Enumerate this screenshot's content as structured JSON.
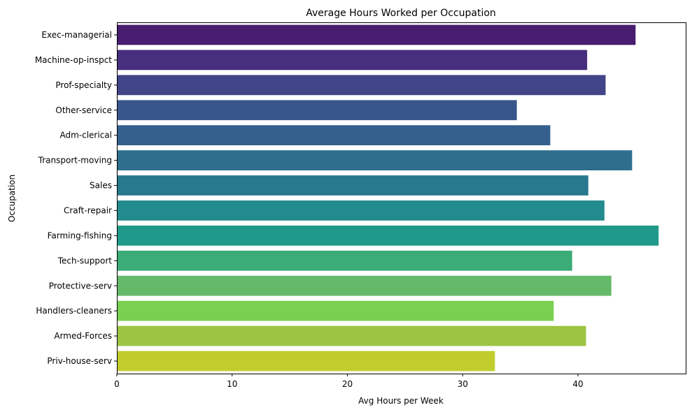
{
  "chart_data": {
    "type": "bar",
    "orientation": "horizontal",
    "title": "Average Hours Worked per Occupation",
    "xlabel": "Avg Hours per Week",
    "ylabel": "Occupation",
    "categories": [
      "Exec-managerial",
      "Machine-op-inspct",
      "Prof-specialty",
      "Other-service",
      "Adm-clerical",
      "Transport-moving",
      "Sales",
      "Craft-repair",
      "Farming-fishing",
      "Tech-support",
      "Protective-serv",
      "Handlers-cleaners",
      "Armed-Forces",
      "Priv-house-serv"
    ],
    "values": [
      45.0,
      40.8,
      42.4,
      34.7,
      37.6,
      44.7,
      40.9,
      42.3,
      47.0,
      39.5,
      42.9,
      37.9,
      40.7,
      32.8
    ],
    "colors": [
      "#481C6E",
      "#472F7D",
      "#414487",
      "#39568C",
      "#35608D",
      "#2E6F8E",
      "#29798E",
      "#228B8D",
      "#1F9A8A",
      "#3BAB77",
      "#65BA6A",
      "#7AD151",
      "#9DC542",
      "#C0CD2C"
    ],
    "xlim": [
      0,
      49.35
    ],
    "xticks": [
      0,
      10,
      20,
      30,
      40
    ],
    "grid": false,
    "legend": "none"
  }
}
